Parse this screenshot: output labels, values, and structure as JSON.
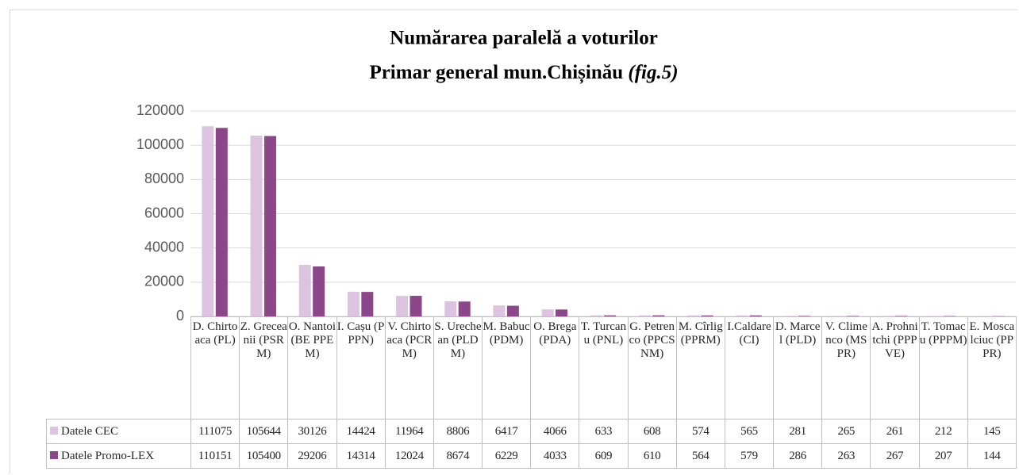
{
  "chart_data": {
    "type": "bar",
    "title": "Numărarea paralelă a voturilor",
    "subtitle": "Primar general mun.Chișinău",
    "subtitle_note": "(fig.5)",
    "categories": [
      "D. Chirtoaca (PL)",
      "Z. Greceanii (PSRM)",
      "O. Nantoi (BE PPEM)",
      "I. Cașu (PPPN)",
      "V. Chirtoaca (PCRM)",
      "S. Urechean (PLDM)",
      "M. Babuc (PDM)",
      "O. Brega (PDA)",
      "T. Turcanu (PNL)",
      "G. Petrenco (PPCSNM)",
      "M. Cîrlig (PPRM)",
      "I.Caldare (CI)",
      "D. Marcel (PLD)",
      "V. Climenco (MSPR)",
      "A. Prohnitchi (PPPVE)",
      "T. Tomacu (PPPM)",
      "E. Moscalciuc (PPPR)"
    ],
    "series": [
      {
        "name": "Datele CEC",
        "color": "#dcc4e0",
        "values": [
          111075,
          105644,
          30126,
          14424,
          11964,
          8806,
          6417,
          4066,
          633,
          608,
          574,
          565,
          281,
          265,
          261,
          212,
          145
        ]
      },
      {
        "name": "Datele Promo-LEX",
        "color": "#8b4789",
        "values": [
          110151,
          105400,
          29206,
          14314,
          12024,
          8674,
          6229,
          4033,
          609,
          610,
          564,
          579,
          286,
          263,
          267,
          207,
          144
        ]
      }
    ],
    "ylim": [
      0,
      120000
    ],
    "yticks": [
      0,
      20000,
      40000,
      60000,
      80000,
      100000,
      120000
    ],
    "grid": true
  }
}
